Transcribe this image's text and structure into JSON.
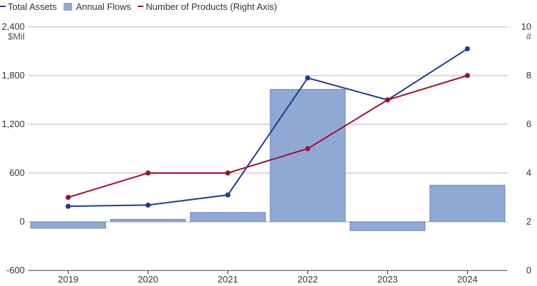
{
  "chart_data": {
    "type": "bar+line",
    "title": "",
    "categories": [
      "2019",
      "2020",
      "2021",
      "2022",
      "2023",
      "2024"
    ],
    "left_axis": {
      "unit": "$Mil",
      "ticks": [
        "2,400",
        "1,800",
        "1,200",
        "600",
        "0",
        "-600"
      ],
      "ylim": [
        -600,
        2400
      ]
    },
    "right_axis": {
      "unit": "#",
      "ticks": [
        "10",
        "8",
        "6",
        "4",
        "2",
        "0"
      ],
      "ylim": [
        0,
        10
      ]
    },
    "series": [
      {
        "name": "Total Assets",
        "type": "line",
        "axis": "left",
        "color": "#1f3a93",
        "values": [
          190,
          205,
          330,
          1770,
          1500,
          2130
        ]
      },
      {
        "name": "Annual Flows",
        "type": "bar",
        "axis": "left",
        "color": "#8fa9d4",
        "values": [
          -80,
          30,
          115,
          1630,
          -110,
          450
        ]
      },
      {
        "name": "Number of Products (Right Axis)",
        "type": "line",
        "axis": "right",
        "color": "#a10e2b",
        "values": [
          3,
          4,
          4,
          5,
          7,
          8
        ]
      }
    ],
    "grid": true,
    "legend_position": "top-left"
  }
}
